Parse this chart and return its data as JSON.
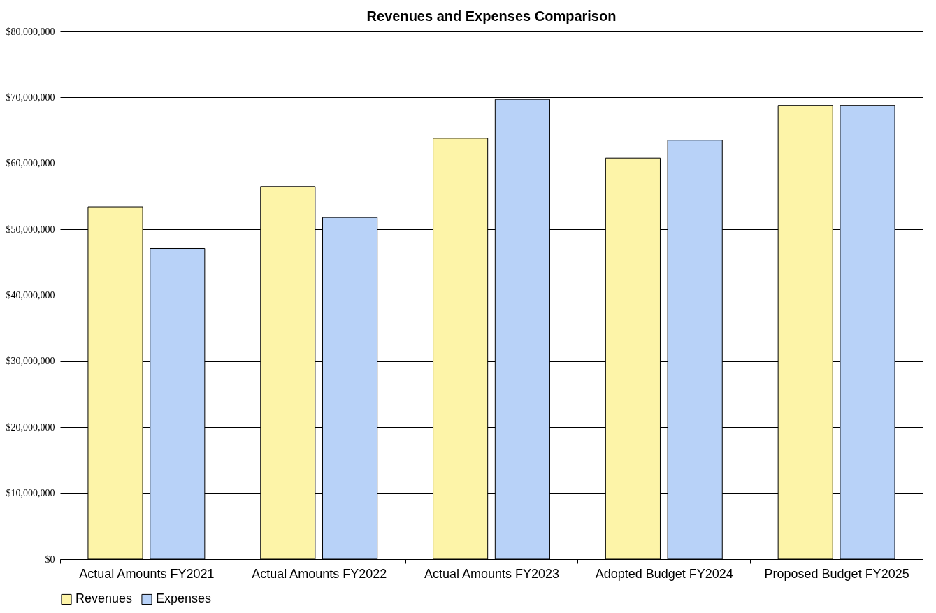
{
  "chart_data": {
    "type": "bar",
    "title": "Revenues and Expenses Comparison",
    "categories": [
      "Actual Amounts FY2021",
      "Actual Amounts FY2022",
      "Actual Amounts FY2023",
      "Adopted Budget FY2024",
      "Proposed Budget FY2025"
    ],
    "series": [
      {
        "name": "Revenues",
        "color": "#fdf4a8",
        "values": [
          53400000,
          56500000,
          63800000,
          60800000,
          68800000
        ]
      },
      {
        "name": "Expenses",
        "color": "#b8d2f8",
        "values": [
          47100000,
          51800000,
          69700000,
          63500000,
          68800000
        ]
      }
    ],
    "ylim": [
      0,
      80000000
    ],
    "yticks": [
      {
        "value": 0,
        "label": "$0"
      },
      {
        "value": 10000000,
        "label": "$10,000,000"
      },
      {
        "value": 20000000,
        "label": "$20,000,000"
      },
      {
        "value": 30000000,
        "label": "$30,000,000"
      },
      {
        "value": 40000000,
        "label": "$40,000,000"
      },
      {
        "value": 50000000,
        "label": "$50,000,000"
      },
      {
        "value": 60000000,
        "label": "$60,000,000"
      },
      {
        "value": 70000000,
        "label": "$70,000,000"
      },
      {
        "value": 80000000,
        "label": "$80,000,000"
      }
    ],
    "grid": "y",
    "legend": "bottom"
  }
}
